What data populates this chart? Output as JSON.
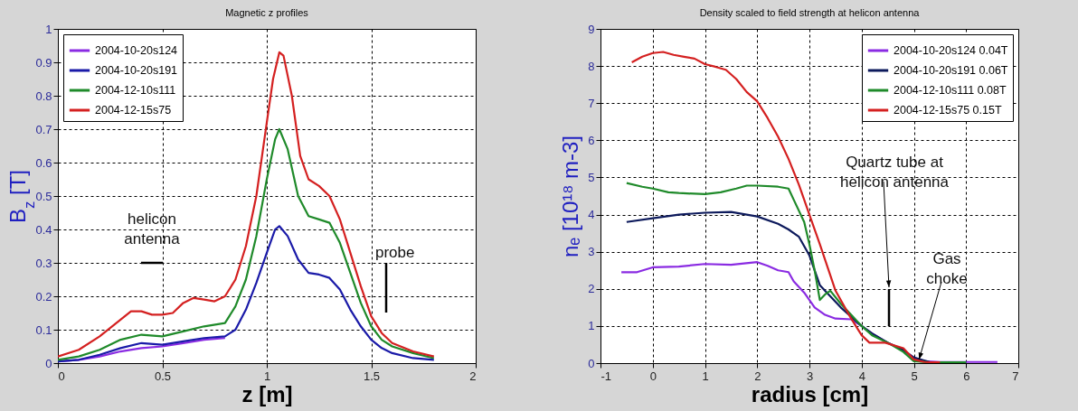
{
  "chart_data": [
    {
      "type": "line",
      "title": "Magnetic z profiles",
      "xlabel": "z [m]",
      "ylabel": "B$_{z}$ [T]",
      "xlim": [
        0,
        2
      ],
      "ylim": [
        0,
        1
      ],
      "xticks": [
        0,
        0.5,
        1,
        1.5,
        2
      ],
      "yticks": [
        0,
        0.1,
        0.2,
        0.3,
        0.4,
        0.5,
        0.6,
        0.7,
        0.8,
        0.9,
        1
      ],
      "grid": true,
      "legend": "top left",
      "annotations": [
        "helicon antenna",
        "probe"
      ],
      "series": [
        {
          "name": "2004-10-20s124",
          "color": "#8a2be2",
          "x": [
            0,
            0.1,
            0.2,
            0.3,
            0.4,
            0.5,
            0.6,
            0.7,
            0.8
          ],
          "values": [
            0.005,
            0.01,
            0.02,
            0.035,
            0.045,
            0.05,
            0.06,
            0.07,
            0.075
          ]
        },
        {
          "name": "2004-10-20s191",
          "color": "#1a1aa8",
          "x": [
            0,
            0.1,
            0.2,
            0.3,
            0.4,
            0.5,
            0.6,
            0.7,
            0.8,
            0.85,
            0.9,
            0.95,
            1.0,
            1.04,
            1.06,
            1.1,
            1.15,
            1.2,
            1.25,
            1.3,
            1.35,
            1.4,
            1.45,
            1.5,
            1.55,
            1.6,
            1.7,
            1.8
          ],
          "values": [
            0.005,
            0.01,
            0.025,
            0.045,
            0.06,
            0.055,
            0.065,
            0.075,
            0.08,
            0.1,
            0.16,
            0.24,
            0.33,
            0.4,
            0.41,
            0.38,
            0.31,
            0.27,
            0.265,
            0.255,
            0.22,
            0.16,
            0.11,
            0.07,
            0.045,
            0.03,
            0.015,
            0.01
          ]
        },
        {
          "name": "2004-12-10s111",
          "color": "#1f8a2a",
          "x": [
            0,
            0.1,
            0.2,
            0.3,
            0.4,
            0.5,
            0.6,
            0.7,
            0.8,
            0.85,
            0.9,
            0.95,
            1.0,
            1.04,
            1.06,
            1.1,
            1.15,
            1.2,
            1.25,
            1.3,
            1.35,
            1.4,
            1.45,
            1.5,
            1.55,
            1.6,
            1.7,
            1.8
          ],
          "values": [
            0.01,
            0.02,
            0.04,
            0.07,
            0.085,
            0.08,
            0.095,
            0.11,
            0.12,
            0.17,
            0.25,
            0.38,
            0.55,
            0.67,
            0.7,
            0.64,
            0.5,
            0.44,
            0.43,
            0.42,
            0.36,
            0.27,
            0.18,
            0.11,
            0.07,
            0.05,
            0.03,
            0.015
          ]
        },
        {
          "name": "2004-12-15s75",
          "color": "#d42020",
          "x": [
            0,
            0.1,
            0.2,
            0.3,
            0.35,
            0.4,
            0.45,
            0.5,
            0.55,
            0.6,
            0.65,
            0.7,
            0.75,
            0.8,
            0.85,
            0.9,
            0.95,
            1.0,
            1.03,
            1.06,
            1.08,
            1.12,
            1.16,
            1.2,
            1.25,
            1.3,
            1.35,
            1.4,
            1.45,
            1.5,
            1.55,
            1.6,
            1.7,
            1.8
          ],
          "values": [
            0.02,
            0.04,
            0.08,
            0.13,
            0.155,
            0.155,
            0.145,
            0.145,
            0.15,
            0.18,
            0.195,
            0.19,
            0.185,
            0.2,
            0.25,
            0.35,
            0.5,
            0.72,
            0.85,
            0.93,
            0.92,
            0.8,
            0.62,
            0.55,
            0.53,
            0.5,
            0.43,
            0.33,
            0.23,
            0.14,
            0.09,
            0.06,
            0.035,
            0.02
          ]
        }
      ]
    },
    {
      "type": "line",
      "title": "Density scaled to field strength at helicon antenna",
      "xlabel": "radius [cm]",
      "ylabel": "nₑ [10¹⁸ m-3]",
      "xlim": [
        -1,
        7
      ],
      "ylim": [
        0,
        9
      ],
      "xticks": [
        -1,
        0,
        1,
        2,
        3,
        4,
        5,
        6,
        7
      ],
      "yticks": [
        0,
        1,
        2,
        3,
        4,
        5,
        6,
        7,
        8,
        9
      ],
      "grid": true,
      "legend": "top right",
      "annotations": [
        "Quartz tube at helicon antenna",
        {
          "text": "Gas choke",
          "x": 5.1,
          "y": 0.1
        }
      ],
      "series": [
        {
          "name": "2004-10-20s124 0.04T",
          "color": "#8a2be2",
          "x": [
            -0.6,
            -0.3,
            0,
            0.5,
            1,
            1.5,
            2,
            2.2,
            2.4,
            2.6,
            2.7,
            2.9,
            3.1,
            3.3,
            3.5,
            3.8,
            4.0,
            4.2,
            4.5,
            4.8,
            5.0,
            5.2,
            5.5,
            6.0,
            6.6
          ],
          "values": [
            2.45,
            2.45,
            2.58,
            2.6,
            2.67,
            2.65,
            2.72,
            2.62,
            2.5,
            2.45,
            2.2,
            1.9,
            1.5,
            1.3,
            1.2,
            1.18,
            1.0,
            0.8,
            0.55,
            0.35,
            0.15,
            0.05,
            0.03,
            0.03,
            0.03
          ]
        },
        {
          "name": "2004-10-20s191 0.06T",
          "color": "#0d1a5c",
          "x": [
            -0.5,
            0,
            0.5,
            1,
            1.5,
            2,
            2.4,
            2.6,
            2.8,
            3.0,
            3.2,
            3.4,
            3.6,
            3.8,
            4.0,
            4.2,
            4.5,
            4.8,
            5.0,
            5.3,
            6.0
          ],
          "values": [
            3.8,
            3.9,
            4.0,
            4.05,
            4.07,
            3.95,
            3.75,
            3.6,
            3.4,
            2.9,
            2.1,
            1.8,
            1.5,
            1.25,
            1.0,
            0.8,
            0.55,
            0.35,
            0.15,
            0.03,
            0.02
          ]
        },
        {
          "name": "2004-12-10s111 0.08T",
          "color": "#1f8a2a",
          "x": [
            -0.5,
            -0.2,
            0,
            0.3,
            0.5,
            1,
            1.3,
            1.6,
            1.8,
            2.0,
            2.4,
            2.6,
            2.7,
            2.9,
            3.0,
            3.1,
            3.2,
            3.3,
            3.4,
            3.6,
            3.8,
            4.0,
            4.2,
            4.5,
            4.8,
            5.0,
            5.3,
            6.0
          ],
          "values": [
            4.85,
            4.75,
            4.7,
            4.6,
            4.58,
            4.55,
            4.6,
            4.7,
            4.78,
            4.78,
            4.75,
            4.7,
            4.4,
            3.8,
            3.2,
            2.5,
            1.7,
            1.85,
            1.95,
            1.6,
            1.3,
            1.0,
            0.75,
            0.55,
            0.3,
            0.05,
            0.02,
            0.02
          ]
        },
        {
          "name": "2004-12-15s75 0.15T",
          "color": "#d42020",
          "x": [
            -0.4,
            -0.2,
            0,
            0.2,
            0.4,
            0.6,
            0.8,
            1.0,
            1.2,
            1.4,
            1.6,
            1.8,
            2.0,
            2.2,
            2.4,
            2.6,
            2.8,
            3.0,
            3.2,
            3.5,
            3.8,
            4.0,
            4.15,
            4.45,
            4.8,
            5.0,
            5.2,
            5.5
          ],
          "values": [
            8.1,
            8.25,
            8.35,
            8.38,
            8.3,
            8.25,
            8.2,
            8.05,
            7.98,
            7.9,
            7.65,
            7.3,
            7.05,
            6.6,
            6.1,
            5.5,
            4.8,
            4.0,
            3.2,
            1.95,
            1.2,
            0.75,
            0.55,
            0.55,
            0.4,
            0.1,
            0.03,
            0.02
          ]
        }
      ]
    }
  ]
}
